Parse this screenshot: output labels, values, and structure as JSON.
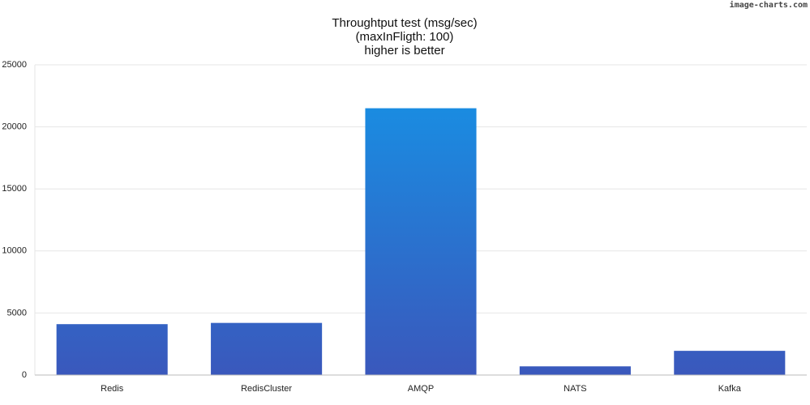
{
  "chart_data": {
    "type": "bar",
    "title": [
      "Throughtput test (msg/sec)",
      "(maxInFligth: 100)",
      "higher is better"
    ],
    "watermark": "image-charts.com",
    "categories": [
      "Redis",
      "RedisCluster",
      "AMQP",
      "NATS",
      "Kafka"
    ],
    "values": [
      4100,
      4200,
      21500,
      700,
      1950
    ],
    "gradient": [
      "#1594e7",
      "#3a58bc"
    ],
    "ylim": [
      0,
      25000
    ],
    "yticks": [
      0,
      5000,
      10000,
      15000,
      20000,
      25000
    ],
    "grid": true
  }
}
